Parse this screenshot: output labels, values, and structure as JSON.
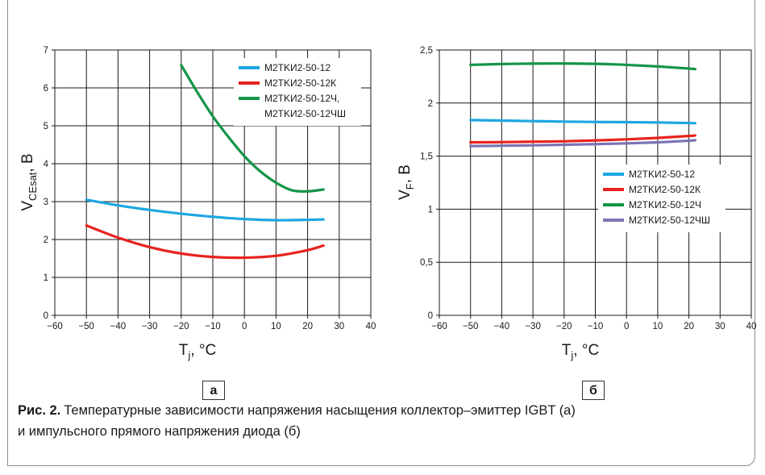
{
  "colors": {
    "cyan": "#1ea7e1",
    "red": "#e8231f",
    "green": "#139547",
    "purple": "#7b74b4",
    "grid": "#1a1a1a"
  },
  "panels": {
    "a": {
      "label": "а"
    },
    "b": {
      "label": "б"
    }
  },
  "caption": {
    "fig_label": "Рис. 2.",
    "line1": "Температурные зависимости напряжения насыщения коллектор–эмиттер IGBT (а)",
    "line2": "и импульсного прямого напряжения диода (б)"
  },
  "chart_data": [
    {
      "id": "a",
      "type": "line",
      "xlabel": "T",
      "xlabel_sub": "j",
      "xlabel_suffix": ", °C",
      "ylabel": "V",
      "ylabel_sub": "CEsat",
      "ylabel_suffix": ", В",
      "xlim": [
        -60,
        40
      ],
      "ylim": [
        0,
        7
      ],
      "xticks": [
        -60,
        -50,
        -40,
        -30,
        -20,
        -10,
        0,
        10,
        20,
        30,
        40
      ],
      "yticks": [
        0,
        1,
        2,
        3,
        4,
        5,
        6,
        7
      ],
      "xtick_labels": [
        "−60",
        "−50",
        "−40",
        "−30",
        "−20",
        "−10",
        "0",
        "10",
        "20",
        "30",
        "40"
      ],
      "ytick_labels": [
        "0",
        "1",
        "2",
        "3",
        "4",
        "5",
        "6",
        "7"
      ],
      "grid": true,
      "legend": "top-right",
      "series": [
        {
          "name": "M2TKИ2-50-12",
          "color": "#1ea7e1",
          "x": [
            -50,
            -40,
            -30,
            -20,
            -10,
            0,
            10,
            20,
            25
          ],
          "y": [
            3.05,
            2.9,
            2.78,
            2.68,
            2.6,
            2.54,
            2.51,
            2.52,
            2.53
          ]
        },
        {
          "name": "M2TKИ2-50-12К",
          "color": "#e8231f",
          "x": [
            -50,
            -40,
            -30,
            -20,
            -10,
            0,
            10,
            20,
            25
          ],
          "y": [
            2.37,
            2.05,
            1.8,
            1.63,
            1.54,
            1.52,
            1.57,
            1.72,
            1.84
          ]
        },
        {
          "name": "M2TKИ2-50-12Ч,",
          "name_line2": "M2TKИ2-50-12ЧШ",
          "color": "#139547",
          "x": [
            -20,
            -15,
            -10,
            -5,
            0,
            5,
            10,
            15,
            20,
            25
          ],
          "y": [
            6.6,
            5.9,
            5.25,
            4.7,
            4.2,
            3.8,
            3.5,
            3.3,
            3.27,
            3.32
          ]
        }
      ]
    },
    {
      "id": "b",
      "type": "line",
      "xlabel": "T",
      "xlabel_sub": "j",
      "xlabel_suffix": ", °C",
      "ylabel": "V",
      "ylabel_sub": "F",
      "ylabel_suffix": ", В",
      "xlim": [
        -60,
        40
      ],
      "ylim": [
        0,
        2.5
      ],
      "xticks": [
        -60,
        -50,
        -40,
        -30,
        -20,
        -10,
        0,
        10,
        20,
        30,
        40
      ],
      "yticks": [
        0,
        0.5,
        1,
        1.5,
        2,
        2.5
      ],
      "xtick_labels": [
        "−60",
        "−50",
        "−40",
        "−30",
        "−20",
        "−10",
        "0",
        "10",
        "20",
        "30",
        "40"
      ],
      "ytick_labels": [
        "0",
        "0,5",
        "1",
        "1,5",
        "2",
        "2,5"
      ],
      "grid": true,
      "legend": "center-right",
      "series": [
        {
          "name": "M2TKИ2-50-12",
          "color": "#1ea7e1",
          "x": [
            -50,
            -40,
            -30,
            -20,
            -10,
            0,
            10,
            20,
            22
          ],
          "y": [
            1.84,
            1.835,
            1.83,
            1.825,
            1.822,
            1.82,
            1.817,
            1.812,
            1.81
          ]
        },
        {
          "name": "M2TKИ2-50-12К",
          "color": "#e8231f",
          "x": [
            -50,
            -40,
            -30,
            -20,
            -10,
            0,
            10,
            20,
            22
          ],
          "y": [
            1.63,
            1.632,
            1.636,
            1.64,
            1.648,
            1.658,
            1.672,
            1.69,
            1.695
          ]
        },
        {
          "name": "M2TKИ2-50-12Ч",
          "color": "#139547",
          "x": [
            -50,
            -40,
            -30,
            -20,
            -10,
            0,
            10,
            20,
            22
          ],
          "y": [
            2.36,
            2.368,
            2.372,
            2.373,
            2.37,
            2.36,
            2.345,
            2.325,
            2.32
          ]
        },
        {
          "name": "M2TKИ2-50-12ЧШ",
          "color": "#7b74b4",
          "x": [
            -50,
            -40,
            -30,
            -20,
            -10,
            0,
            10,
            20,
            22
          ],
          "y": [
            1.595,
            1.598,
            1.602,
            1.607,
            1.613,
            1.62,
            1.63,
            1.645,
            1.65
          ]
        }
      ]
    }
  ]
}
